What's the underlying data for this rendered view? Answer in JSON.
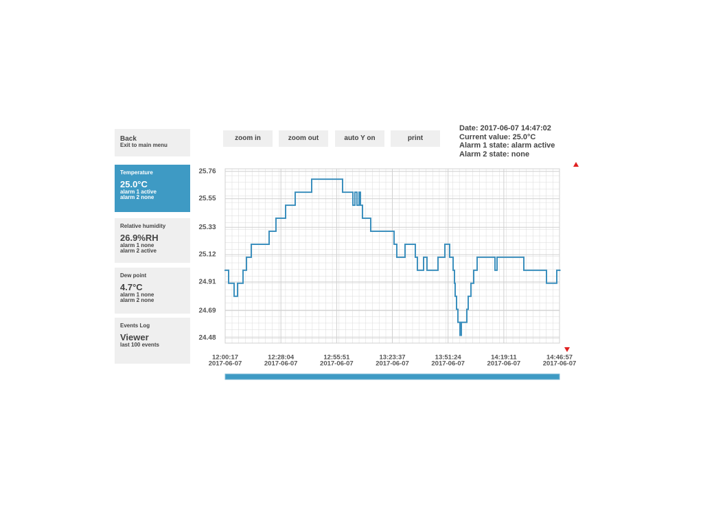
{
  "nav": {
    "back": {
      "title": "Back",
      "subtitle": "Exit to main menu"
    },
    "panels": [
      {
        "title": "Temperature",
        "value": "25.0°C",
        "lines": [
          "alarm 1 active",
          "alarm 2 none"
        ],
        "active": true
      },
      {
        "title": "Relative humidity",
        "value": "26.9%RH",
        "lines": [
          "alarm 1 none",
          "alarm 2 active"
        ]
      },
      {
        "title": "Dew point",
        "value": "4.7°C",
        "lines": [
          "alarm 1 none",
          "alarm 2 none"
        ]
      },
      {
        "title": "Events Log",
        "value": "Viewer",
        "lines": [
          "last 100 events"
        ]
      }
    ]
  },
  "toolbar": [
    "zoom in",
    "zoom out",
    "auto Y on",
    "print"
  ],
  "status": [
    "Date: 2017-06-07 14:47:02",
    "Current value: 25.0°C",
    "Alarm 1 state: alarm active",
    "Alarm 2 state: none"
  ],
  "chart_data": {
    "type": "line",
    "drawstyle": "steps-post",
    "y_unit": "°C",
    "color": "#3b8fbd",
    "grid": true,
    "x": [
      "12:00:17",
      "12:02:00",
      "12:04:44",
      "12:06:27",
      "12:09:11",
      "12:10:54",
      "12:13:17",
      "12:22:11",
      "12:25:36",
      "12:30:24",
      "12:35:11",
      "12:43:24",
      "12:58:48",
      "13:03:56",
      "13:04:57",
      "13:05:59",
      "13:07:01",
      "13:07:42",
      "13:08:43",
      "13:12:50",
      "13:24:28",
      "13:25:50",
      "13:29:56",
      "13:35:04",
      "13:36:06",
      "13:39:11",
      "13:40:53",
      "13:46:22",
      "13:49:47",
      "13:52:11",
      "13:53:54",
      "13:54:35",
      "13:54:56",
      "13:55:37",
      "13:56:18",
      "13:57:20",
      "13:58:01",
      "14:00:45",
      "14:01:26",
      "14:02:48",
      "14:04:10",
      "14:05:53",
      "14:14:47",
      "14:15:48",
      "14:29:09",
      "14:40:27",
      "14:45:35",
      "14:46:57"
    ],
    "values": [
      25.0,
      24.9,
      24.8,
      24.9,
      25.0,
      25.1,
      25.2,
      25.3,
      25.4,
      25.5,
      25.6,
      25.7,
      25.6,
      25.5,
      25.6,
      25.5,
      25.6,
      25.5,
      25.4,
      25.3,
      25.2,
      25.1,
      25.2,
      25.1,
      25.0,
      25.1,
      25.0,
      25.1,
      25.2,
      25.1,
      25.0,
      24.9,
      24.8,
      24.7,
      24.6,
      24.5,
      24.6,
      24.7,
      24.8,
      24.9,
      25.0,
      25.1,
      25.0,
      25.1,
      25.0,
      24.9,
      25.0,
      25.0
    ],
    "xlim": [
      "12:00:17",
      "14:46:57"
    ],
    "xticks": [
      {
        "value": "12:00:17",
        "date": "2017-06-07"
      },
      {
        "value": "12:28:04",
        "date": "2017-06-07"
      },
      {
        "value": "12:55:51",
        "date": "2017-06-07"
      },
      {
        "value": "13:23:37",
        "date": "2017-06-07"
      },
      {
        "value": "13:51:24",
        "date": "2017-06-07"
      },
      {
        "value": "14:19:11",
        "date": "2017-06-07"
      },
      {
        "value": "14:46:57",
        "date": "2017-06-07"
      }
    ],
    "ylim": [
      24.44,
      25.78
    ],
    "yticks": [
      24.48,
      24.69,
      24.91,
      25.12,
      25.33,
      25.55,
      25.76
    ]
  }
}
